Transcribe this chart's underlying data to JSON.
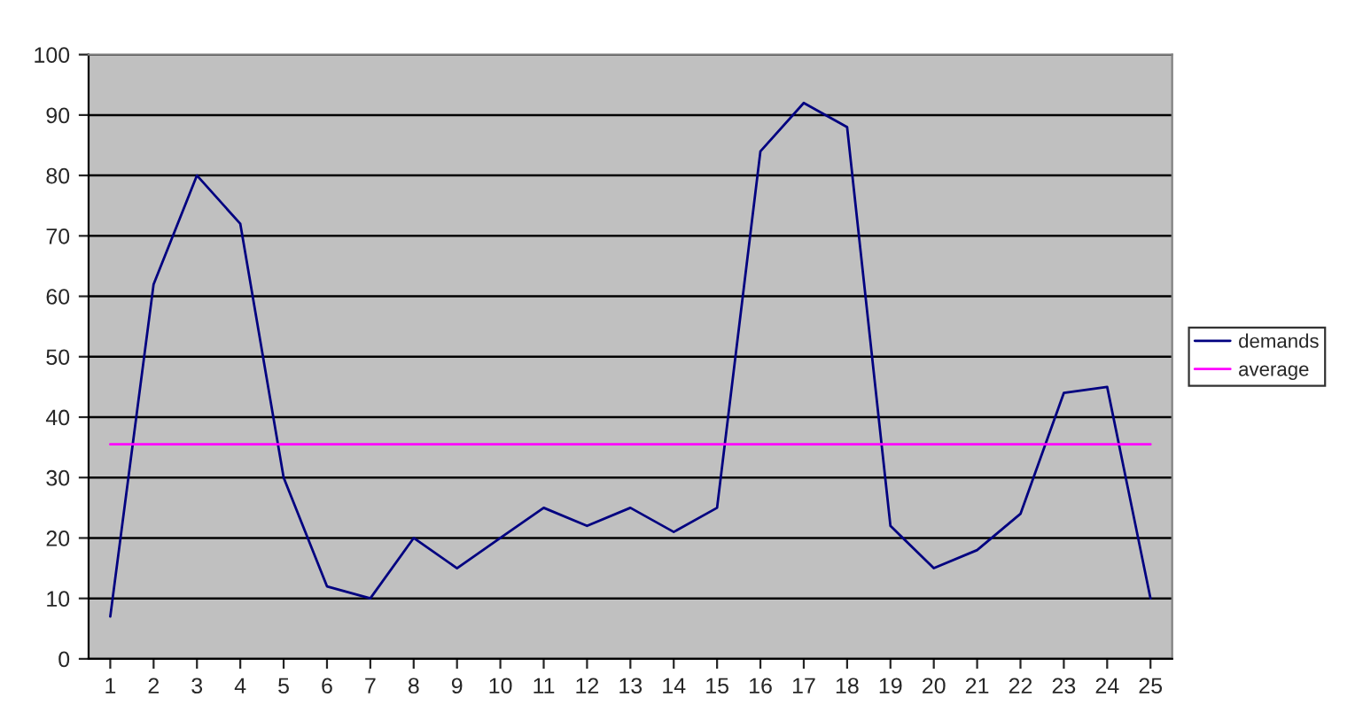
{
  "chart_data": {
    "type": "line",
    "categories": [
      "1",
      "2",
      "3",
      "4",
      "5",
      "6",
      "7",
      "8",
      "9",
      "10",
      "11",
      "12",
      "13",
      "14",
      "15",
      "16",
      "17",
      "18",
      "19",
      "20",
      "21",
      "22",
      "23",
      "24",
      "25"
    ],
    "series": [
      {
        "name": "demands",
        "color": "#000080",
        "values": [
          7,
          62,
          80,
          72,
          30,
          12,
          10,
          20,
          15,
          20,
          25,
          22,
          25,
          21,
          25,
          84,
          92,
          88,
          22,
          15,
          18,
          24,
          44,
          45,
          10
        ]
      },
      {
        "name": "average",
        "color": "#ff00ff",
        "values": [
          35.5,
          35.5,
          35.5,
          35.5,
          35.5,
          35.5,
          35.5,
          35.5,
          35.5,
          35.5,
          35.5,
          35.5,
          35.5,
          35.5,
          35.5,
          35.5,
          35.5,
          35.5,
          35.5,
          35.5,
          35.5,
          35.5,
          35.5,
          35.5,
          35.5
        ]
      }
    ],
    "ylim": [
      0,
      100
    ],
    "yticks": [
      0,
      10,
      20,
      30,
      40,
      50,
      60,
      70,
      80,
      90,
      100
    ],
    "grid": "y",
    "legend": "right",
    "marker": "none",
    "line_style": "solid"
  }
}
